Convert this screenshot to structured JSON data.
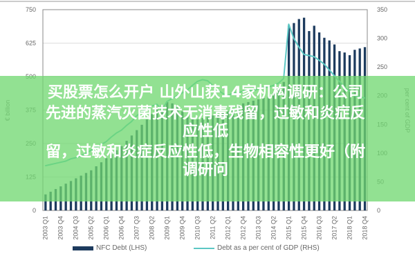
{
  "chart_data": {
    "type": "bar+line",
    "title": "",
    "ylabel_left": "€ billion",
    "ylabel_right": "per cent of GDP",
    "ylim_left": [
      0,
      750
    ],
    "ylim_right": [
      0,
      350
    ],
    "yticks_left": [
      "0",
      "125",
      "250",
      "375",
      "500",
      "625",
      "750"
    ],
    "yticks_right": [
      "0",
      "50",
      "100",
      "150",
      "200",
      "250",
      "300",
      "350"
    ],
    "x_tick_labels": [
      "2003 Q1",
      "2003 Q4",
      "2004 Q3",
      "2005 Q2",
      "2006 Q1",
      "2006 Q4",
      "2007 Q3",
      "2008 Q2",
      "2009 Q1",
      "2009 Q4",
      "2010 Q3",
      "2011 Q2",
      "2012 Q1",
      "2012 Q4",
      "2013 Q3",
      "2014 Q2",
      "2015 Q1",
      "2015 Q4",
      "2016 Q3",
      "2017 Q2",
      "2018 Q1",
      "2018 Q4"
    ],
    "x_start": "2003 Q1",
    "x_end": "2018 Q4",
    "grid": "horizontal",
    "legend_placement": "bottom",
    "series": [
      {
        "name": "NFC Debt (LHS)",
        "kind": "bar",
        "axis": "left",
        "color": "#1d3b5e",
        "values": [
          60,
          70,
          80,
          90,
          100,
          110,
          120,
          130,
          140,
          150,
          165,
          180,
          195,
          210,
          225,
          240,
          260,
          280,
          300,
          320,
          340,
          360,
          380,
          395,
          405,
          400,
          385,
          370,
          355,
          345,
          340,
          345,
          350,
          355,
          360,
          365,
          370,
          380,
          390,
          400,
          405,
          410,
          415,
          420,
          425,
          440,
          460,
          480,
          690,
          700,
          715,
          720,
          670,
          690,
          665,
          645,
          635,
          620,
          595,
          590,
          580,
          600,
          605,
          610
        ]
      },
      {
        "name": "Debt as a per cent of GDP (RHS)",
        "kind": "line",
        "axis": "right",
        "color": "#5cc7c4",
        "values": [
          78,
          80,
          82,
          84,
          86,
          90,
          92,
          95,
          100,
          105,
          110,
          115,
          120,
          128,
          135,
          140,
          148,
          155,
          165,
          172,
          178,
          182,
          185,
          175,
          190,
          195,
          200,
          205,
          210,
          218,
          225,
          228,
          226,
          218,
          210,
          204,
          200,
          205,
          205,
          208,
          210,
          208,
          212,
          215,
          215,
          218,
          222,
          230,
          325,
          300,
          285,
          272,
          270,
          268,
          262,
          255,
          245,
          235,
          225,
          215,
          208,
          200,
          198,
          196
        ]
      }
    ]
  },
  "overlay": {
    "color": "#70d870",
    "lines": [
      "买股票怎么开户 山外山获14家机构调研：公司",
      "先进的蒸汽灭菌技术无消毒残留，过敏和炎症反应性低",
      "留，过敏和炎症反应性低，生物相容性更好（附调研问"
    ]
  }
}
